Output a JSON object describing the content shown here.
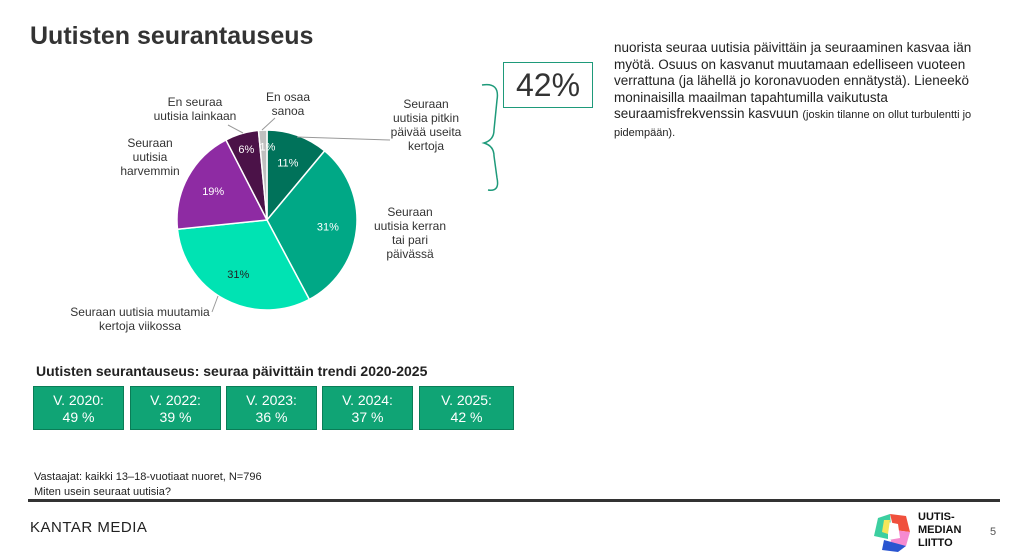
{
  "title": "Uutisten seurantauseus",
  "highlight": "42%",
  "description": {
    "main": "nuorista seuraa uutisia päivittäin ja seuraaminen kasvaa iän myötä. Osuus on kasvanut muutamaan edelliseen vuoteen verrattuna (ja lähellä jo koronavuoden ennätystä). Lieneekö moninaisilla maailman tapahtumilla vaikutusta seuraamisfrekvenssin kasvuun",
    "small": "(joskin tilanne on ollut turbulentti jo pidempään)."
  },
  "chart_data": {
    "type": "pie",
    "title": "",
    "slices": [
      {
        "label": "Seuraan uutisia pitkin päivää useita kertoja",
        "value": 11,
        "display": "11%",
        "color": "#00725a"
      },
      {
        "label": "Seuraan uutisia kerran tai pari päivässä",
        "value": 31,
        "display": "31%",
        "color": "#00a886"
      },
      {
        "label": "Seuraan uutisia muutamia kertoja viikossa",
        "value": 31,
        "display": "31%",
        "color": "#00e3b3"
      },
      {
        "label": "Seuraan uutisia harvemmin",
        "value": 19,
        "display": "19%",
        "color": "#8e2ba3"
      },
      {
        "label": "En seuraa uutisia lainkaan",
        "value": 6,
        "display": "6%",
        "color": "#4b1248"
      },
      {
        "label": "En osaa sanoa",
        "value": 1,
        "display": "1%",
        "color": "#c0c0c0"
      }
    ]
  },
  "trend": {
    "title": "Uutisten seurantauseus: seuraa päivittäin trendi 2020-2025",
    "items": [
      {
        "year": "V. 2020:",
        "value": "49 %"
      },
      {
        "year": "V. 2022:",
        "value": "39 %"
      },
      {
        "year": "V. 2023:",
        "value": "36 %"
      },
      {
        "year": "V. 2024:",
        "value": "37 %"
      },
      {
        "year": "V. 2025:",
        "value": "42 %"
      }
    ]
  },
  "footer": {
    "respondents": "Vastaajat: kaikki 13–18-vuotiaat nuoret, N=796",
    "question": "Miten usein seuraat uutisia?",
    "brand": "KANTAR MEDIA",
    "logo_text": [
      "UUTIS-",
      "MEDIAN",
      "LIITTO"
    ],
    "page": "5"
  }
}
